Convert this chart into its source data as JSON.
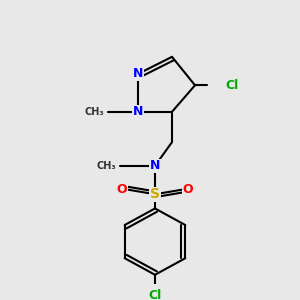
{
  "background_color": "#e8e8e8",
  "figsize": [
    3.0,
    3.0
  ],
  "dpi": 100,
  "bond_color": "#000000",
  "bond_width": 1.5,
  "atom_colors": {
    "N": "#0000FF",
    "Cl": "#00AA00",
    "S": "#CCAA00",
    "O": "#FF0000",
    "C": "#000000"
  },
  "font_size": 9,
  "font_size_small": 8
}
